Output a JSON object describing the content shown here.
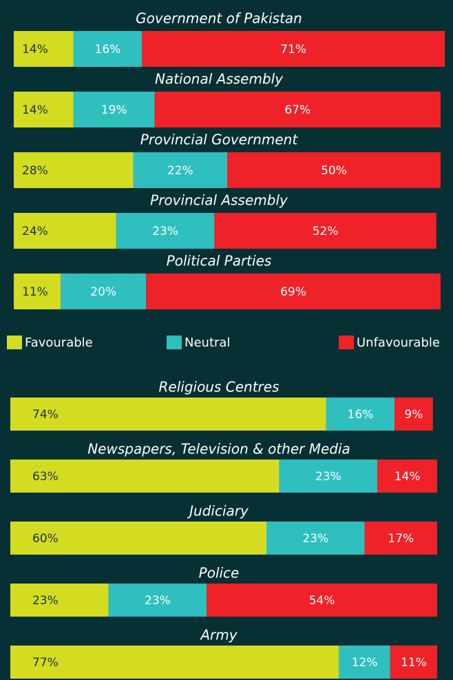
{
  "chart_data": {
    "type": "stacked-bar-horizontal",
    "categories": [
      "Government of Pakistan",
      "National Assembly",
      "Provincial Government",
      "Provincial Assembly",
      "Political Parties",
      "Religious Centres",
      "Newspapers, Television & other Media",
      "Judiciary",
      "Police",
      "Army"
    ],
    "xlim": [
      0,
      100
    ],
    "series": [
      {
        "name": "Favourable",
        "color": "#d4dc22",
        "values": [
          14,
          14,
          28,
          24,
          11,
          74,
          63,
          60,
          23,
          77
        ],
        "value_labels": [
          "14%",
          "14%",
          "28%",
          "24%",
          "11%",
          "74%",
          "63%",
          "60%",
          "23%",
          "77%"
        ]
      },
      {
        "name": "Neutral",
        "color": "#2fbfbf",
        "values": [
          16,
          19,
          22,
          23,
          20,
          16,
          23,
          23,
          23,
          12
        ],
        "value_labels": [
          "16%",
          "19%",
          "22%",
          "23%",
          "20%",
          "16%",
          "23%",
          "23%",
          "23%",
          "12%"
        ]
      },
      {
        "name": "Unfavourable",
        "color": "#ee2228",
        "values": [
          71,
          67,
          50,
          52,
          69,
          9,
          14,
          17,
          54,
          11
        ],
        "value_labels": [
          "71%",
          "67%",
          "50%",
          "52%",
          "69%",
          "9%",
          "14%",
          "17%",
          "54%",
          "11%"
        ]
      }
    ]
  }
}
